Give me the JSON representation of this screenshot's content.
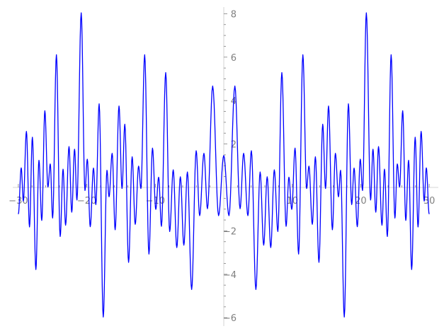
{
  "chart_data": {
    "type": "line",
    "title": "",
    "xlabel": "",
    "ylabel": "",
    "xlim": [
      -30,
      30
    ],
    "ylim": [
      -6,
      8.3
    ],
    "axes_through_origin": true,
    "grid": false,
    "x_major_ticks": [
      -30,
      -20,
      -10,
      10,
      20,
      30
    ],
    "x_tick_labels": [
      "−30",
      "−20",
      "−10",
      "10",
      "20",
      "30"
    ],
    "x_minor_tick_step": 2,
    "y_major_ticks": [
      -6,
      -4,
      -2,
      2,
      4,
      6,
      8
    ],
    "y_tick_labels": [
      "−6",
      "−4",
      "−2",
      "2",
      "4",
      "6",
      "8"
    ],
    "y_minor_tick_step": 0.5,
    "colors": {
      "line": "#0000ff",
      "axis": "#dddddd",
      "ticks": "#808080"
    },
    "series": [
      {
        "note_points": "local extrema of the curve",
        "x": [
          -30,
          -29.58,
          -29.27,
          -28.82,
          -28.37,
          -27.95,
          -27.44,
          -26.99,
          -26.58,
          -26.13,
          -25.68,
          -25.34,
          -24.99,
          -24.44,
          -23.89,
          -23.47,
          -23.1,
          -22.6,
          -22.2,
          -21.79,
          -21.44,
          -20.82,
          -20.27,
          -19.93,
          -19.5,
          -19.03,
          -18.68,
          -18.2,
          -17.6,
          -17.06,
          -16.75,
          -16.3,
          -15.86,
          -15.3,
          -14.86,
          -14.45,
          -13.9,
          -13.38,
          -12.93,
          -12.44,
          -12.1,
          -11.55,
          -10.93,
          -10.41,
          -9.93,
          -9.51,
          -9.1,
          -8.48,
          -7.9,
          -7.38,
          -6.86,
          -6.34,
          -5.83,
          -5.31,
          -4.69,
          -4.03,
          -3.52,
          -2.9,
          -2.38,
          -1.62,
          -0.76,
          0,
          0.76,
          1.62,
          2.38,
          2.9,
          3.52,
          4.03,
          4.69,
          5.31,
          5.83,
          6.34,
          6.86,
          7.38,
          7.9,
          8.48,
          9.1,
          9.51,
          9.93,
          10.41,
          10.93,
          11.55,
          12.1,
          12.44,
          12.93,
          13.38,
          13.9,
          14.45,
          14.86,
          15.3,
          15.86,
          16.3,
          16.75,
          17.06,
          17.6,
          18.2,
          18.68,
          19.03,
          19.5,
          19.93,
          20.27,
          20.82,
          21.44,
          21.79,
          22.2,
          22.6,
          23.1,
          23.47,
          23.89,
          24.44,
          24.99,
          25.34,
          25.68,
          26.13,
          26.58,
          26.99,
          27.44,
          27.95,
          28.37,
          28.82,
          29.27,
          29.58,
          30
        ],
        "y": [
          -1.23,
          0.9,
          -0.63,
          2.58,
          -1.82,
          2.31,
          -3.78,
          1.25,
          -1.52,
          3.53,
          0.02,
          1.08,
          -1.41,
          6.11,
          -2.26,
          0.84,
          -1.74,
          1.88,
          -1.14,
          1.76,
          -0.58,
          8.04,
          -0.14,
          1.3,
          -1.81,
          0.89,
          -0.79,
          3.85,
          -5.97,
          0.79,
          -0.43,
          1.57,
          -1.95,
          3.75,
          -0.05,
          2.91,
          -3.45,
          1.41,
          -1.7,
          0.98,
          -0.05,
          6.11,
          -3.07,
          1.81,
          -1.01,
          0.47,
          -1.79,
          5.29,
          -2.03,
          0.81,
          -2.77,
          0.49,
          -2.66,
          0.71,
          -4.7,
          1.69,
          -1.3,
          1.57,
          -0.98,
          4.67,
          -1.3,
          1.47,
          -1.3,
          4.67,
          -0.98,
          1.57,
          -1.3,
          1.69,
          -4.7,
          0.71,
          -2.66,
          0.49,
          -2.77,
          0.81,
          -2.03,
          5.29,
          -1.79,
          0.47,
          -1.01,
          1.81,
          -3.07,
          6.11,
          -0.05,
          0.98,
          -1.7,
          1.41,
          -3.45,
          2.91,
          -0.05,
          3.75,
          -1.95,
          1.57,
          -0.43,
          0.79,
          -5.97,
          3.85,
          -0.79,
          0.89,
          -1.81,
          1.3,
          -0.14,
          8.04,
          -0.58,
          1.76,
          -1.14,
          1.88,
          -1.74,
          0.84,
          -2.26,
          6.11,
          -1.41,
          1.08,
          0.02,
          3.53,
          -1.52,
          1.25,
          -3.78,
          2.31,
          -1.82,
          2.58,
          -0.63,
          0.9,
          -1.23
        ]
      }
    ]
  }
}
